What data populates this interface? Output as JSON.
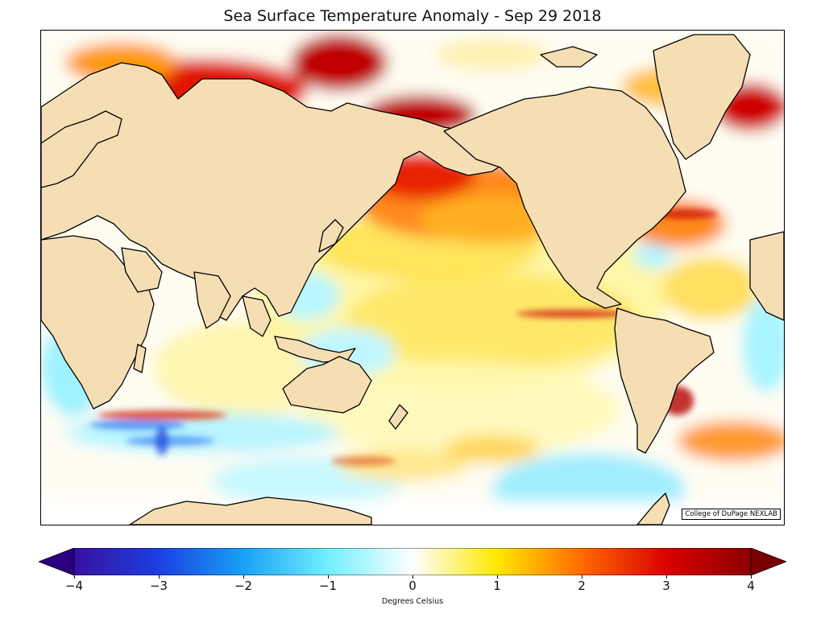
{
  "title": "Sea Surface Temperature Anomaly - Sep 29 2018",
  "credit": "College of DuPage NEXLAB",
  "colorbar": {
    "label": "Degrees Celsius",
    "min": -4,
    "max": 4,
    "extend": "both",
    "ticks": [
      "−4",
      "−3",
      "−2",
      "−1",
      "0",
      "1",
      "2",
      "3",
      "4"
    ],
    "tick_values": [
      -4,
      -3,
      -2,
      -1,
      0,
      1,
      2,
      3,
      4
    ],
    "colormap": [
      {
        "value": -4,
        "color": "#3a0fa0"
      },
      {
        "value": -3,
        "color": "#1b3fe0"
      },
      {
        "value": -2,
        "color": "#1aa0f5"
      },
      {
        "value": -1,
        "color": "#70f0ff"
      },
      {
        "value": 0,
        "color": "#ffffff"
      },
      {
        "value": 1,
        "color": "#ffe800"
      },
      {
        "value": 2,
        "color": "#ff6a00"
      },
      {
        "value": 3,
        "color": "#dc0000"
      },
      {
        "value": 4,
        "color": "#8b0000"
      }
    ],
    "under_color": "#2a0080",
    "over_color": "#7a0000"
  },
  "map": {
    "region": "Global, Pacific-centered",
    "land_color": "#f5deb3",
    "ocean_color": "#ffffff"
  }
}
